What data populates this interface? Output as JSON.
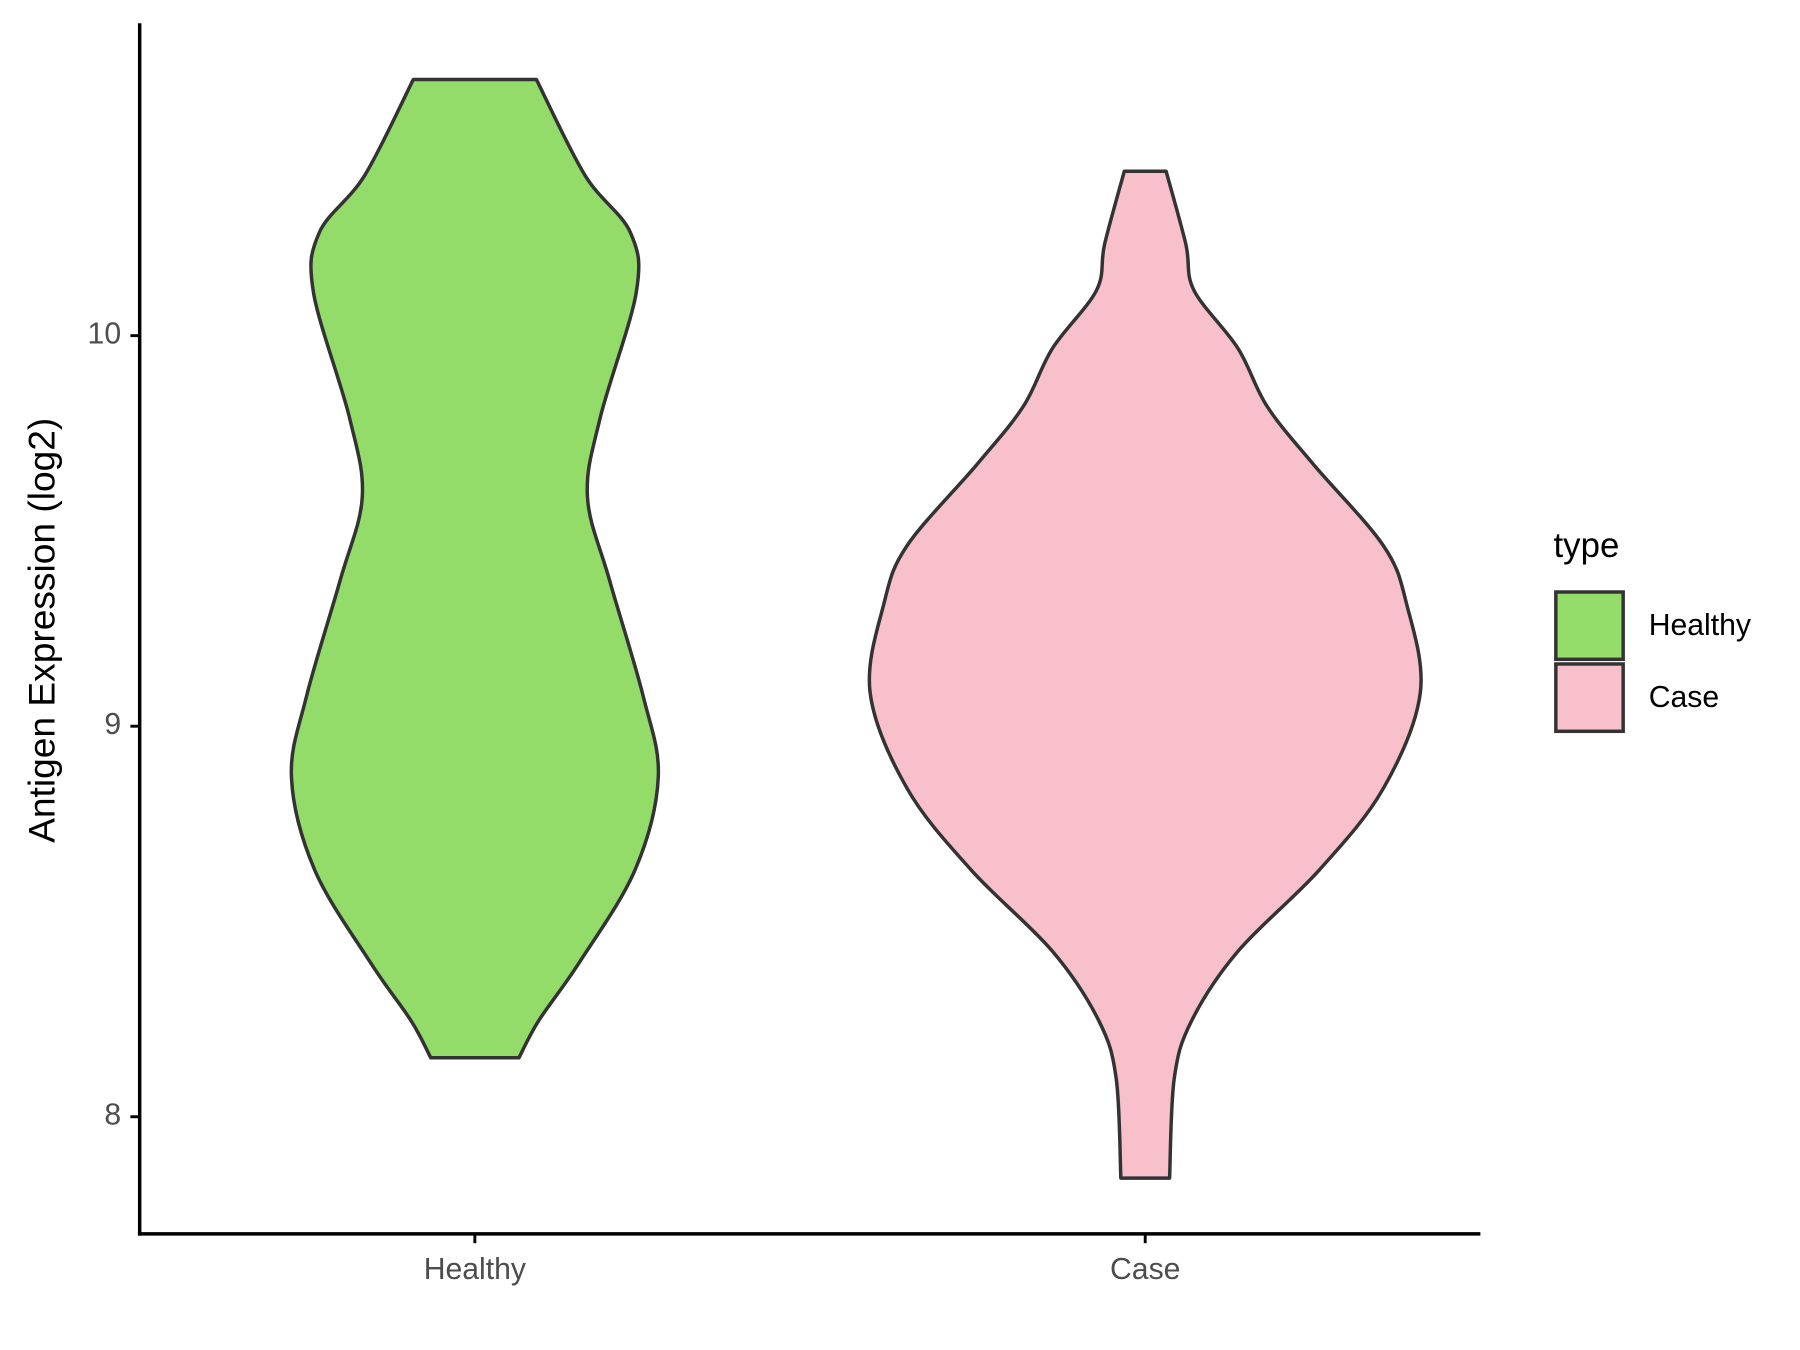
{
  "chart_data": {
    "type": "violin",
    "y_label": "Antigen Expression (log2)",
    "categories": [
      "Healthy",
      "Case"
    ],
    "ylim": [
      7.7,
      10.8
    ],
    "yticks": [
      8,
      9,
      10
    ],
    "legend_title": "type",
    "legend_position": "right",
    "outline_color": "#333333",
    "series": [
      {
        "name": "Healthy",
        "color": "#93dc6a",
        "y": [
          10.656,
          10.41,
          10.264,
          10.11,
          9.79,
          9.587,
          9.374,
          9.077,
          8.869,
          8.632,
          8.395,
          8.246,
          8.151
        ],
        "density": [
          0.53,
          0.95,
          1.34,
          1.39,
          1.08,
          0.97,
          1.16,
          1.45,
          1.58,
          1.38,
          0.9,
          0.55,
          0.38
        ]
      },
      {
        "name": "Case",
        "color": "#f7c0cb",
        "y": [
          10.421,
          10.234,
          10.116,
          9.967,
          9.819,
          9.67,
          9.463,
          9.315,
          9.086,
          8.84,
          8.632,
          8.424,
          8.246,
          8.098,
          7.843
        ],
        "density": [
          0.18,
          0.35,
          0.42,
          0.8,
          1.05,
          1.45,
          2.05,
          2.25,
          2.37,
          2.05,
          1.5,
          0.8,
          0.4,
          0.25,
          0.21
        ]
      }
    ]
  }
}
